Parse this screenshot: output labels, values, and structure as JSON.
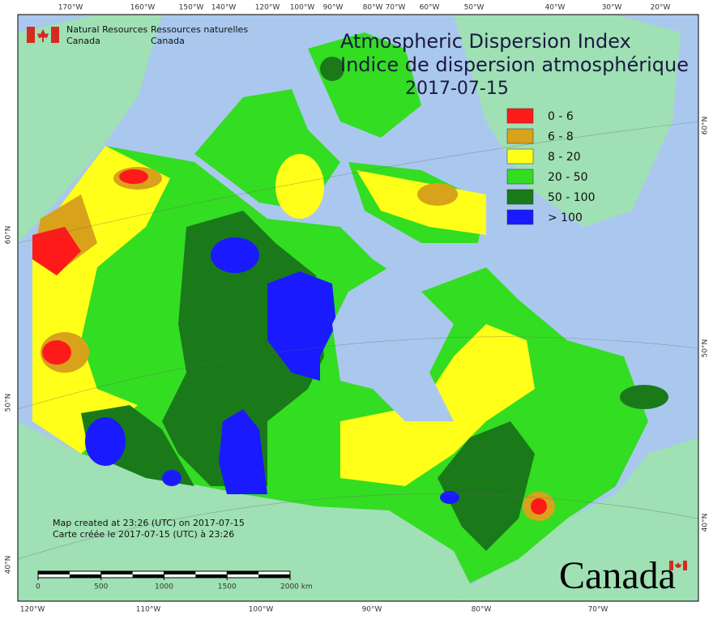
{
  "map": {
    "title": "Atmospheric Dispersion Index",
    "title_fr": "Indice de dispersion atmosphérique",
    "date": "2017-07-15",
    "agency_en": [
      "Natural Resources",
      "Canada"
    ],
    "agency_fr": [
      "Ressources naturelles",
      "Canada"
    ],
    "legend": [
      {
        "label": "0 - 6",
        "color": "#ff1a1a"
      },
      {
        "label": "6 - 8",
        "color": "#d9a21b"
      },
      {
        "label": "8 - 20",
        "color": "#ffff1a"
      },
      {
        "label": "20 - 50",
        "color": "#33dd22"
      },
      {
        "label": "50 - 100",
        "color": "#1a7a1a"
      },
      {
        "label": "> 100",
        "color": "#1a1aff"
      }
    ],
    "credits": [
      "Map created at 23:26 (UTC) on 2017-07-15",
      "Carte créée le 2017-07-15 (UTC) à 23:26"
    ],
    "scale_ticks": [
      0,
      500,
      1000,
      1500,
      {
        "value": 2000,
        "label": "2000 km"
      }
    ],
    "top_lon_labels": [
      "170°W",
      "160°W",
      "150°W",
      "140°W",
      "120°W",
      "100°W",
      "90°W",
      "80°W",
      "70°W",
      "60°W",
      "50°W",
      "40°W",
      "30°W",
      "20°W"
    ],
    "bottom_lon_labels": [
      "120°W",
      "110°W",
      "100°W",
      "90°W",
      "80°W",
      "70°W"
    ],
    "left_lat_labels": [
      "60°N",
      "50°N",
      "40°N"
    ],
    "right_lat_labels": [
      "60°N",
      "50°N",
      "40°N"
    ],
    "wordmark": "Canada"
  }
}
